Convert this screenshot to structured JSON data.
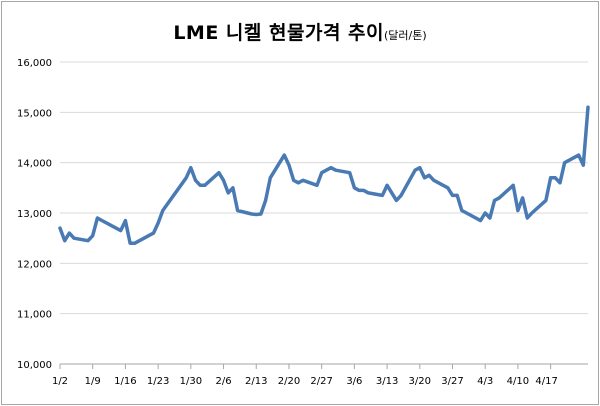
{
  "chart_data": {
    "type": "line",
    "title": "LME 니켈 현물가격 추이",
    "unit": "(달러/톤)",
    "xlabel": "",
    "ylabel": "",
    "ylim": [
      10000,
      16000
    ],
    "y_ticks": [
      10000,
      11000,
      12000,
      13000,
      14000,
      15000,
      16000
    ],
    "y_tick_labels": [
      "10,000",
      "11,000",
      "12,000",
      "13,000",
      "14,000",
      "15,000",
      "16,000"
    ],
    "x_tick_labels": [
      "1/2",
      "1/9",
      "1/16",
      "1/23",
      "1/30",
      "2/6",
      "2/13",
      "2/20",
      "2/27",
      "3/6",
      "3/13",
      "3/20",
      "3/27",
      "4/3",
      "4/10",
      "4/17"
    ],
    "grid": true,
    "line_color": "#4a7ab4",
    "series": [
      {
        "name": "LME 니켈 현물가격",
        "x": [
          0,
          1,
          2,
          3,
          6,
          7,
          8,
          9,
          13,
          14,
          15,
          16,
          17,
          20,
          21,
          22,
          27,
          28,
          29,
          30,
          31,
          34,
          35,
          36,
          37,
          38,
          41,
          42,
          43,
          44,
          45,
          48,
          49,
          50,
          51,
          52,
          55,
          56,
          57,
          58,
          59,
          62,
          63,
          64,
          65,
          66,
          69,
          70,
          71,
          72,
          73,
          76,
          77,
          78,
          79,
          80,
          83,
          84,
          85,
          86,
          87,
          90,
          91,
          92,
          93,
          94,
          97,
          98,
          99,
          100,
          101,
          104,
          105,
          106,
          107,
          108
        ],
        "values": [
          12700,
          12450,
          12600,
          12500,
          12450,
          12550,
          12900,
          12850,
          12650,
          12850,
          12400,
          12400,
          12450,
          12600,
          12800,
          13050,
          13700,
          13900,
          13650,
          13550,
          13550,
          13800,
          13650,
          13400,
          13500,
          13050,
          12980,
          12970,
          12980,
          13250,
          13700,
          14150,
          13950,
          13650,
          13600,
          13650,
          13550,
          13800,
          13850,
          13900,
          13850,
          13800,
          13500,
          13450,
          13450,
          13400,
          13350,
          13550,
          13400,
          13250,
          13350,
          13850,
          13900,
          13700,
          13750,
          13650,
          13500,
          13350,
          13350,
          13050,
          13000,
          12850,
          13000,
          12900,
          13250,
          13300,
          13550,
          13050,
          13300,
          12900,
          13000,
          13250,
          13700,
          13700,
          13600,
          14000
        ]
      }
    ],
    "final_points": {
      "x": [
        111,
        112,
        113
      ],
      "values": [
        14150,
        13950,
        15100
      ]
    }
  }
}
